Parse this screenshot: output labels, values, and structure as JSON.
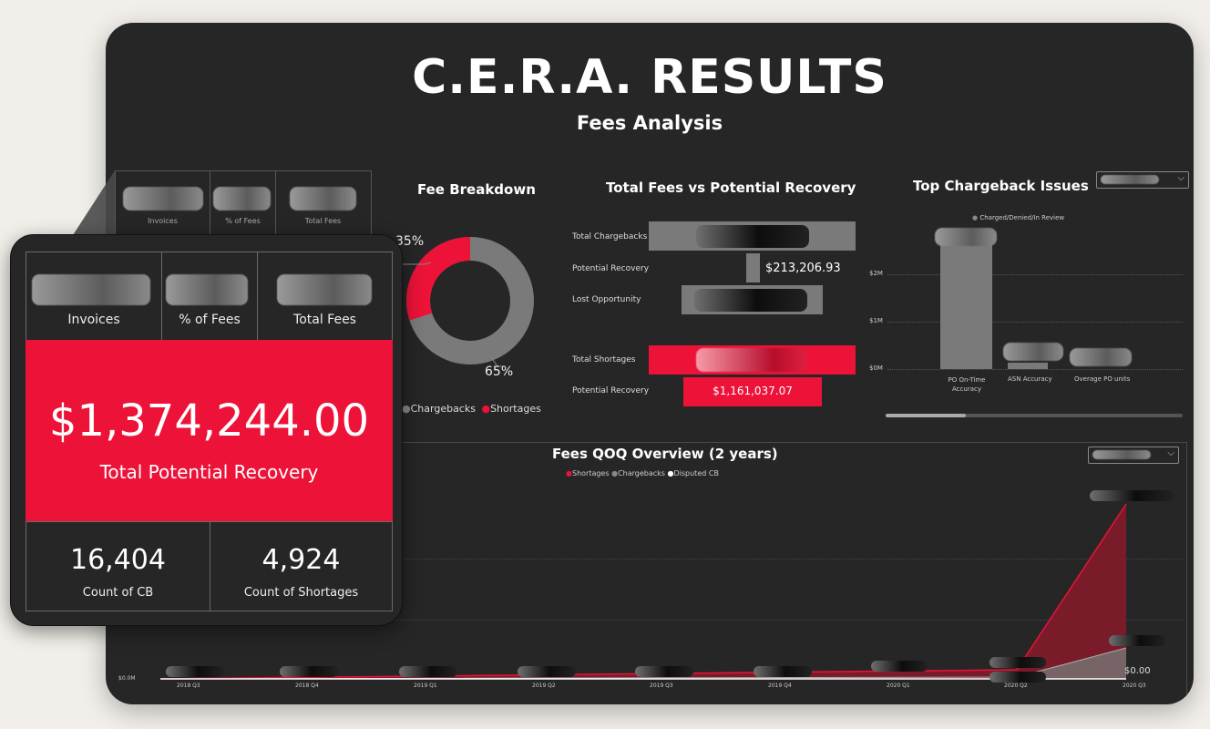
{
  "header": {
    "title": "C.E.R.A. RESULTS",
    "subtitle": "Fees Analysis"
  },
  "summary_card": {
    "invoices_label": "Invoices",
    "pct_fees_label": "% of Fees",
    "total_fees_label": "Total Fees",
    "total_potential_recovery_value": "$1,374,244.00",
    "total_potential_recovery_label": "Total Potential Recovery",
    "count_cb_value": "16,404",
    "count_cb_label": "Count of CB",
    "count_shortages_value": "4,924",
    "count_shortages_label": "Count of Shortages"
  },
  "fee_breakdown": {
    "title": "Fee Breakdown",
    "shortages_pct": "35%",
    "chargebacks_pct": "65%",
    "legend_chargebacks": "Chargebacks",
    "legend_shortages": "Shortages"
  },
  "fees_vs_recovery": {
    "title": "Total Fees vs Potential Recovery",
    "rows": {
      "total_chargebacks": "Total Chargebacks",
      "potential_recovery_cb": "Potential Recovery",
      "lost_opportunity": "Lost Opportunity",
      "total_shortages": "Total Shortages",
      "potential_recovery_sh": "Potential Recovery"
    },
    "potential_recovery_cb_value": "$213,206.93",
    "potential_recovery_sh_value": "$1,161,037.07"
  },
  "top_chargeback": {
    "title": "Top Chargeback Issues",
    "legend": "Charged/Denied/In Review",
    "y_ticks": [
      "$2M",
      "$1M",
      "$0M"
    ],
    "categories": [
      "PO On-Time Accuracy",
      "ASN Accuracy",
      "Overage PO units"
    ]
  },
  "qoq": {
    "title": "Fees QOQ Overview (2 years)",
    "legend_shortages": "Shortages",
    "legend_chargebacks": "Chargebacks",
    "legend_disputed": "Disputed CB",
    "y_label": "$0.0M",
    "x_labels": [
      "2018 Q3",
      "2018 Q4",
      "2019 Q1",
      "2019 Q2",
      "2019 Q3",
      "2019 Q4",
      "2020 Q1",
      "2020 Q2",
      "2020 Q3"
    ],
    "last_value": "$0.00"
  },
  "colors": {
    "accent": "#ec1238",
    "panel": "#262626",
    "grey": "#7a7a7a"
  }
}
